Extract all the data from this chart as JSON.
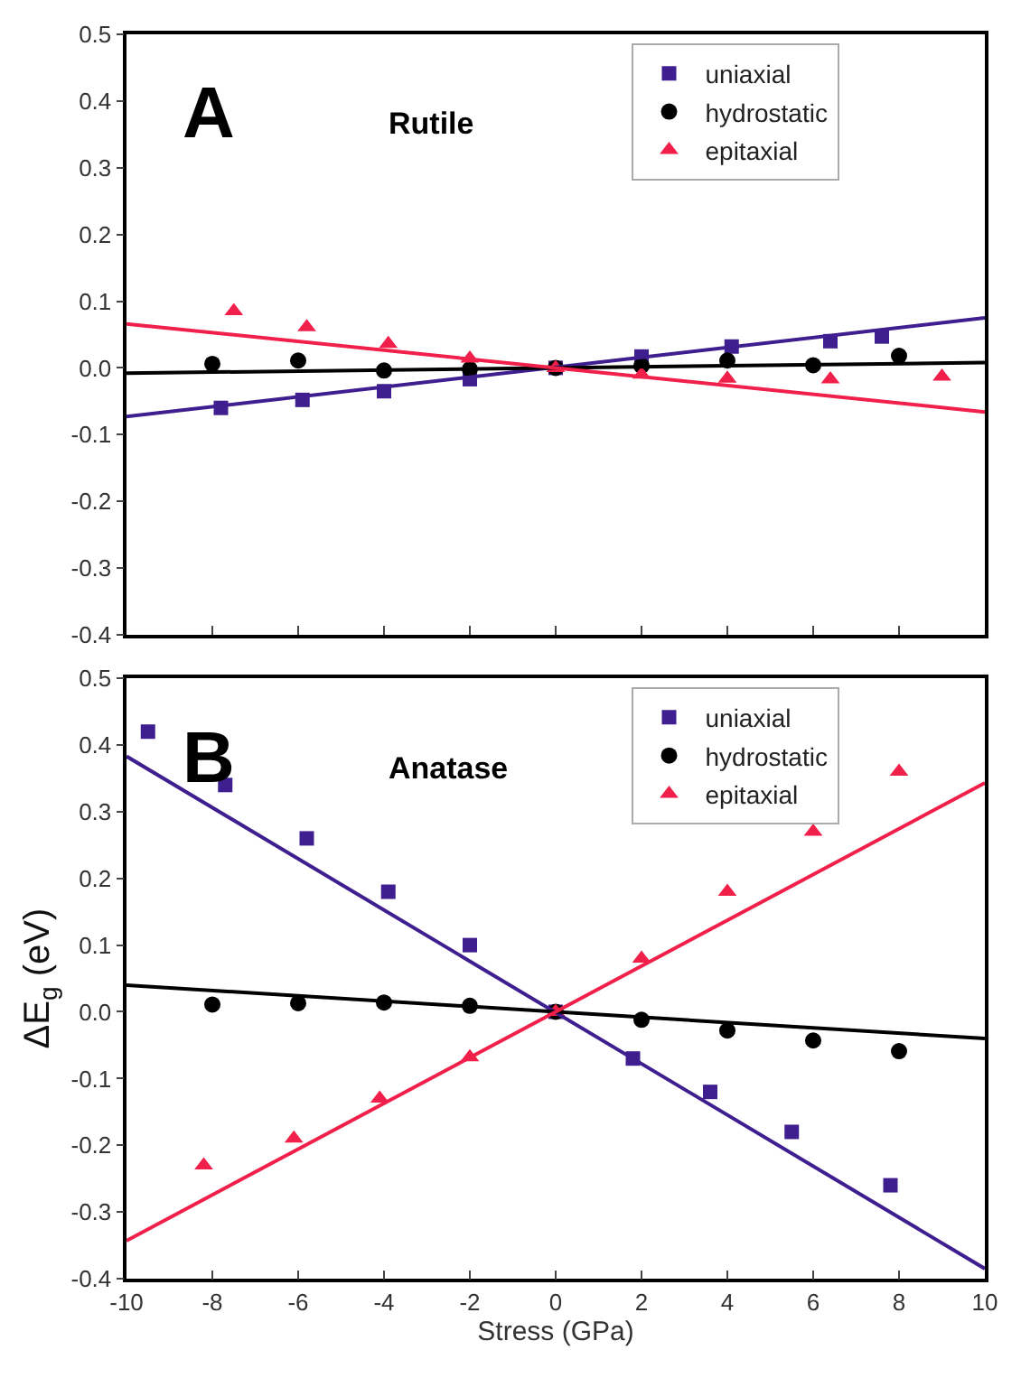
{
  "chart_data": [
    {
      "type": "scatter",
      "annotations": [
        "A",
        "Rutile"
      ],
      "tick_labels": "y",
      "legend": "top right",
      "xlim": [
        -10,
        10
      ],
      "xticks": [
        -10,
        -8,
        -6,
        -4,
        -2,
        0,
        2,
        4,
        6,
        8,
        10
      ],
      "ylim": [
        -0.4,
        0.5
      ],
      "yticks": [
        -0.4,
        -0.3,
        -0.2,
        -0.1,
        {
          "value": 0,
          "label": "0.0"
        },
        0.1,
        0.2,
        0.3,
        0.4,
        0.5
      ],
      "series": [
        {
          "name": "uniaxial",
          "marker": "square",
          "color": "#3f1f8f",
          "x": [
            -7.8,
            -5.9,
            -4.0,
            -2.0,
            0,
            2.0,
            4.1,
            6.4,
            7.6
          ],
          "values": [
            -0.06,
            -0.048,
            -0.035,
            -0.017,
            0,
            0.017,
            0.032,
            0.04,
            0.047
          ]
        },
        {
          "name": "hydrostatic",
          "marker": "circle",
          "color": "#000000",
          "x": [
            -8,
            -6,
            -4,
            -2,
            0,
            2,
            4,
            6,
            8
          ],
          "values": [
            0.006,
            0.011,
            -0.004,
            -0.002,
            0,
            0.003,
            0.011,
            0.004,
            0.018
          ]
        },
        {
          "name": "epitaxial",
          "marker": "triangle",
          "color": "#f0204a",
          "x": [
            -7.5,
            -5.8,
            -3.9,
            -2,
            0,
            2,
            4,
            6.4,
            9.0
          ],
          "values": [
            0.085,
            0.061,
            0.036,
            0.014,
            0,
            -0.01,
            -0.016,
            -0.017,
            -0.013
          ]
        },
        {
          "type": "line",
          "color": "#3f1f8f",
          "x": [
            -10,
            10
          ],
          "values": [
            -0.073,
            0.075
          ]
        },
        {
          "type": "line",
          "color": "#000000",
          "x": [
            -10,
            10
          ],
          "values": [
            -0.008,
            0.008
          ]
        },
        {
          "type": "line",
          "color": "#f0204a",
          "x": [
            -10,
            10
          ],
          "values": [
            0.066,
            -0.066
          ]
        }
      ]
    },
    {
      "type": "scatter",
      "annotations": [
        "B",
        "Anatase"
      ],
      "legend": "top right",
      "xlabel": "Stress (GPa)",
      "ylabel": "ΔE$_{g}$ (eV)",
      "xlim": [
        -10,
        10
      ],
      "xticks": [
        -10,
        -8,
        -6,
        -4,
        -2,
        0,
        2,
        4,
        6,
        8,
        10
      ],
      "ylim": [
        -0.4,
        0.5
      ],
      "yticks": [
        -0.4,
        -0.3,
        -0.2,
        -0.1,
        {
          "value": 0,
          "label": "0.0"
        },
        0.1,
        0.2,
        0.3,
        0.4,
        0.5
      ],
      "series": [
        {
          "name": "uniaxial",
          "marker": "square",
          "color": "#3f1f8f",
          "x": [
            -9.5,
            -7.7,
            -5.8,
            -3.9,
            -2.0,
            0,
            1.8,
            3.6,
            5.5,
            7.8
          ],
          "values": [
            0.42,
            0.34,
            0.26,
            0.18,
            0.1,
            0,
            -0.07,
            -0.12,
            -0.18,
            -0.26
          ]
        },
        {
          "name": "hydrostatic",
          "marker": "circle",
          "color": "#000000",
          "x": [
            -8,
            -6,
            -4,
            -2,
            0,
            2,
            4,
            6,
            8
          ],
          "values": [
            0.011,
            0.013,
            0.014,
            0.009,
            0,
            -0.012,
            -0.028,
            -0.043,
            -0.059
          ]
        },
        {
          "name": "epitaxial",
          "marker": "triangle",
          "color": "#f0204a",
          "x": [
            -8.2,
            -6.1,
            -4.1,
            -2,
            0,
            2,
            4,
            6,
            8
          ],
          "values": [
            -0.23,
            -0.19,
            -0.13,
            -0.068,
            0,
            0.08,
            0.18,
            0.27,
            0.36
          ]
        },
        {
          "type": "line",
          "color": "#3f1f8f",
          "x": [
            -10,
            10
          ],
          "values": [
            0.383,
            -0.385
          ]
        },
        {
          "type": "line",
          "color": "#000000",
          "x": [
            -10,
            10
          ],
          "values": [
            0.04,
            -0.04
          ]
        },
        {
          "type": "line",
          "color": "#f0204a",
          "x": [
            -10,
            10
          ],
          "values": [
            -0.343,
            0.343
          ]
        }
      ]
    }
  ]
}
